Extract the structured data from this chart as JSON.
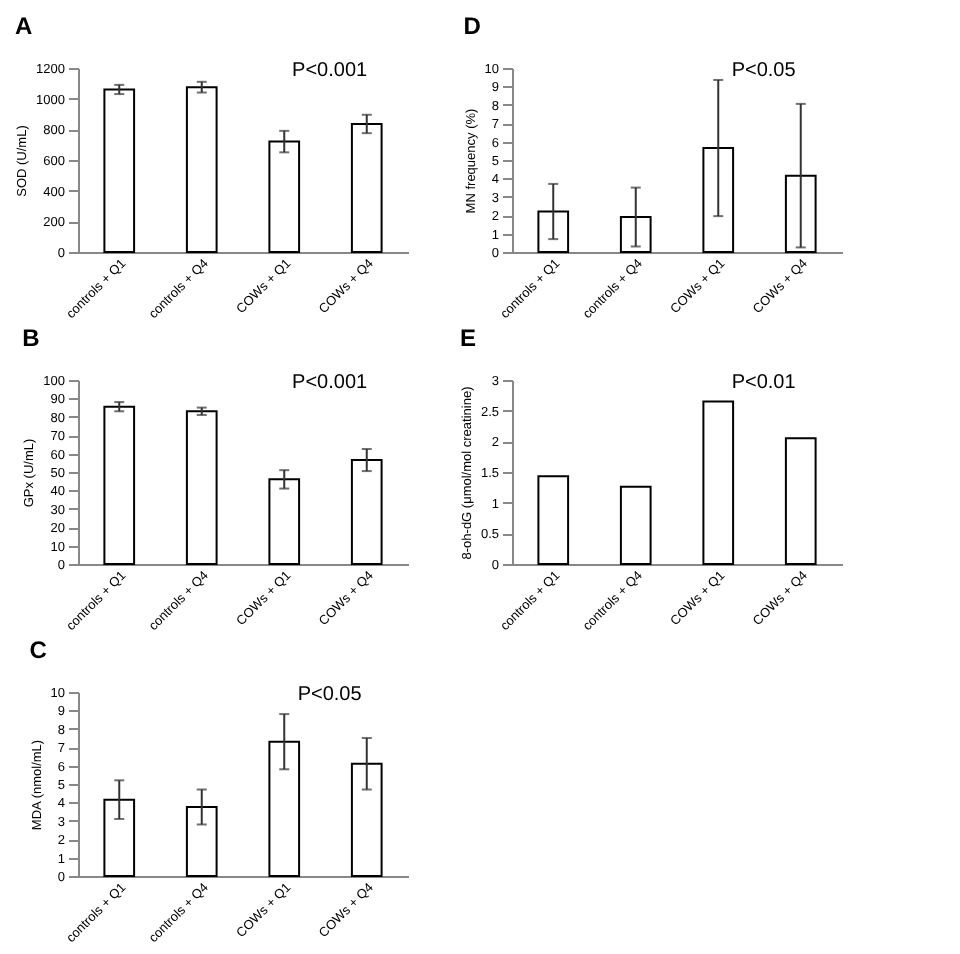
{
  "chart_data": [
    {
      "type": "bar",
      "title": "A",
      "ylabel": "SOD (U/mL)",
      "categories": [
        "controls + Q1",
        "controls + Q4",
        "COWs + Q1",
        "COWs + Q4"
      ],
      "values": [
        1060,
        1075,
        720,
        835
      ],
      "errors": [
        30,
        35,
        70,
        60
      ],
      "color": "#ffffff",
      "ylim": [
        0,
        1200
      ],
      "yticks": [
        0,
        200,
        400,
        600,
        800,
        1000,
        1200
      ],
      "annotations": [
        "P<0.001"
      ]
    },
    {
      "type": "bar",
      "title": "B",
      "ylabel": "GPx (U/mL)",
      "categories": [
        "controls + Q1",
        "controls + Q4",
        "COWs + Q1",
        "COWs + Q4"
      ],
      "values": [
        85.5,
        83,
        46,
        56.5
      ],
      "errors": [
        2.5,
        2,
        5,
        6
      ],
      "color": "#ffffff",
      "ylim": [
        0,
        100
      ],
      "yticks": [
        0,
        10,
        20,
        30,
        40,
        50,
        60,
        70,
        80,
        90,
        100
      ],
      "annotations": [
        "P<0.001"
      ]
    },
    {
      "type": "bar",
      "title": "C",
      "ylabel": "MDA (nmol/mL)",
      "categories": [
        "controls + Q1",
        "controls + Q4",
        "COWs + Q1",
        "COWs + Q4"
      ],
      "values": [
        4.15,
        3.75,
        7.3,
        6.1
      ],
      "errors": [
        1.05,
        0.95,
        1.5,
        1.4
      ],
      "color": "#ffffff",
      "ylim": [
        0,
        10
      ],
      "yticks": [
        0,
        1,
        2,
        3,
        4,
        5,
        6,
        7,
        8,
        9,
        10
      ],
      "annotations": [
        "P<0.05"
      ]
    },
    {
      "type": "bar",
      "title": "D",
      "ylabel": "MN frequency (%)",
      "categories": [
        "controls + Q1",
        "controls + Q4",
        "COWs + Q1",
        "COWs + Q4"
      ],
      "values": [
        2.2,
        1.9,
        5.65,
        4.15
      ],
      "errors": [
        1.5,
        1.6,
        3.7,
        3.9
      ],
      "color": "#ffffff",
      "ylim": [
        0,
        10
      ],
      "yticks": [
        0,
        1,
        2,
        3,
        4,
        5,
        6,
        7,
        8,
        9,
        10
      ],
      "annotations": [
        "P<0.05"
      ]
    },
    {
      "type": "bar",
      "title": "E",
      "ylabel": "8-oh-dG (μmol/mol creatinine)",
      "categories": [
        "controls + Q1",
        "controls + Q4",
        "COWs + Q1",
        "COWs + Q4"
      ],
      "values": [
        1.43,
        1.26,
        2.65,
        2.05
      ],
      "color": "#ffffff",
      "ylim": [
        0,
        3
      ],
      "yticks": [
        0,
        0.5,
        1,
        1.5,
        2,
        2.5,
        3
      ],
      "annotations": [
        "P<0.01"
      ]
    }
  ]
}
